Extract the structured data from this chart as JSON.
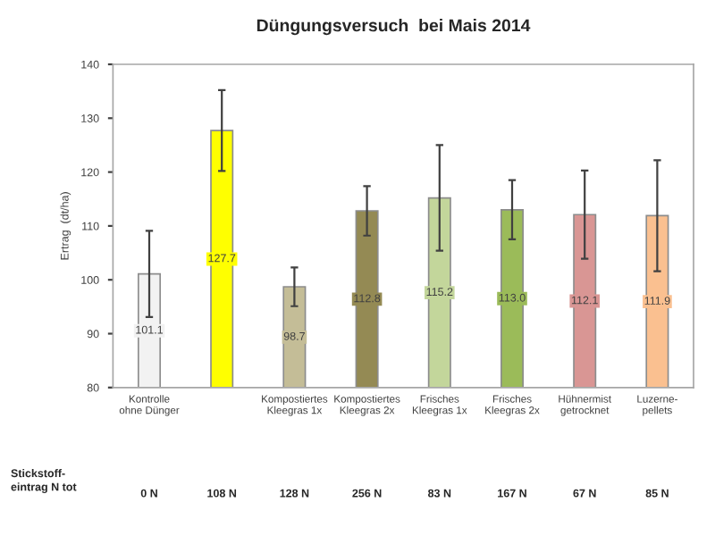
{
  "chart_data": {
    "type": "bar",
    "title": "Düngungsversuch  bei Mais 2014",
    "ylabel": "Ertrag  (dt/ha)",
    "categories": [
      "Kontrolle\nohne Dünger",
      null,
      "Kompostiertes\nKleegras 1x",
      "Kompostiertes\nKleegras 2x",
      "Frisches\nKleegras 1x",
      "Frisches\nKleegras 2x",
      "Hühnermist\ngetrocknet",
      "Luzerne-\npellets"
    ],
    "values": [
      101.1,
      127.7,
      98.7,
      112.8,
      115.2,
      113.0,
      112.1,
      111.9
    ],
    "value_labels": [
      "101.1",
      "127.7",
      "98.7",
      "112.8",
      "115.2",
      "113.0",
      "112.1",
      "111.9"
    ],
    "errors": [
      8.0,
      7.5,
      3.6,
      4.6,
      9.8,
      5.5,
      8.2,
      10.3
    ],
    "colors": [
      "#f2f2f2",
      "#ffff00",
      "#c4bd97",
      "#948a54",
      "#c3d69b",
      "#9bbb59",
      "#d99694",
      "#fac090"
    ],
    "ylim": [
      80,
      140
    ],
    "yticks": [
      80,
      90,
      100,
      110,
      120,
      130,
      140
    ],
    "grid": false,
    "legend": false,
    "annotations": [
      "Stickstoff-\neintrag N tot",
      "0 N",
      "108 N",
      "128 N",
      "256 N",
      "83 N",
      "167 N",
      "67 N",
      "85 N"
    ]
  }
}
